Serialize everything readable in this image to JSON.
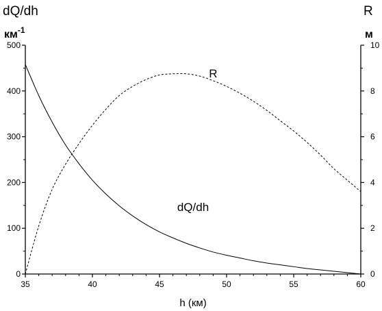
{
  "chart_data": {
    "type": "line",
    "left_axis": {
      "title": "dQ/dh",
      "unit": "км",
      "unit_exponent": "-1",
      "range": [
        0,
        500
      ],
      "ticks": [
        "0",
        "100",
        "200",
        "300",
        "400",
        "500"
      ]
    },
    "right_axis": {
      "title": "R",
      "unit": "м",
      "range": [
        0,
        10
      ],
      "ticks": [
        "0",
        "2",
        "4",
        "6",
        "8",
        "10"
      ]
    },
    "x_axis": {
      "label": "h  (км)",
      "range": [
        35,
        60
      ],
      "ticks": [
        "35",
        "40",
        "45",
        "50",
        "55",
        "60"
      ]
    },
    "grid": false,
    "series": [
      {
        "name": "dQ/dh",
        "axis": "left",
        "style": "solid",
        "x": [
          35,
          36,
          37,
          38,
          39,
          40,
          41,
          42,
          43,
          44,
          45,
          46,
          47,
          48,
          49,
          50,
          51,
          52,
          53,
          54,
          55,
          56,
          57,
          58,
          59,
          60
        ],
        "y": [
          458,
          390,
          332,
          282,
          241,
          205,
          175,
          149,
          127,
          108,
          92,
          79,
          67,
          57,
          48,
          41,
          35,
          29,
          24,
          20,
          16,
          12,
          9,
          6,
          3,
          0
        ]
      },
      {
        "name": "R",
        "axis": "right",
        "style": "dashed",
        "x": [
          35,
          36,
          37,
          38,
          39,
          40,
          41,
          42,
          43,
          44,
          45,
          46,
          47,
          48,
          49,
          50,
          51,
          52,
          53,
          54,
          55,
          56,
          57,
          58,
          59,
          60
        ],
        "y": [
          0,
          2.1,
          3.7,
          4.8,
          5.7,
          6.5,
          7.2,
          7.8,
          8.2,
          8.5,
          8.7,
          8.75,
          8.75,
          8.65,
          8.45,
          8.2,
          7.9,
          7.55,
          7.15,
          6.7,
          6.25,
          5.75,
          5.2,
          4.6,
          4.1,
          3.6
        ]
      }
    ],
    "annotations": [
      {
        "text": "R",
        "x": 49,
        "y": 8.6,
        "axis": "right"
      },
      {
        "text": "dQ/dh",
        "x": 47.5,
        "y": 138,
        "axis": "left"
      }
    ]
  }
}
